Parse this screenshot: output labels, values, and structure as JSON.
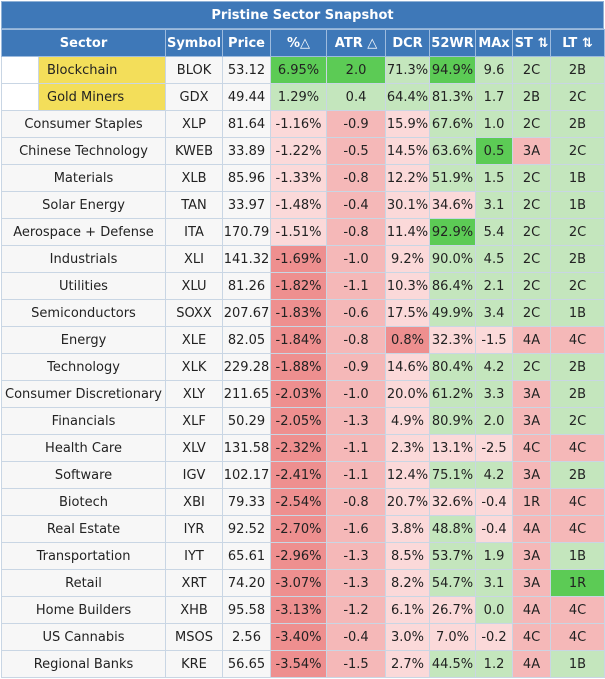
{
  "title": "Pristine Sector Snapshot",
  "headers": [
    "Sector",
    "Symbol",
    "Price",
    "%△",
    "ATR △",
    "DCR",
    "52WR",
    "MAx",
    "ST ⇅",
    "LT ⇅"
  ],
  "rows": [
    {
      "sector": "Blockchain",
      "symbol": "BLOK",
      "price": "53.12",
      "pct": "6.95%",
      "atr": "2.0",
      "dcr": "71.3%",
      "wr": "94.9%",
      "max": "9.6",
      "st": "2C",
      "lt": "2B",
      "hl": true
    },
    {
      "sector": "Gold Miners",
      "symbol": "GDX",
      "price": "49.44",
      "pct": "1.29%",
      "atr": "0.4",
      "dcr": "64.4%",
      "wr": "81.3%",
      "max": "1.7",
      "st": "2B",
      "lt": "2C",
      "hl": true
    },
    {
      "sector": "Consumer Staples",
      "symbol": "XLP",
      "price": "81.64",
      "pct": "-1.16%",
      "atr": "-0.9",
      "dcr": "15.9%",
      "wr": "67.6%",
      "max": "1.0",
      "st": "2C",
      "lt": "2B"
    },
    {
      "sector": "Chinese Technology",
      "symbol": "KWEB",
      "price": "33.89",
      "pct": "-1.22%",
      "atr": "-0.5",
      "dcr": "14.5%",
      "wr": "63.6%",
      "max": "0.5",
      "st": "3A",
      "lt": "2C"
    },
    {
      "sector": "Materials",
      "symbol": "XLB",
      "price": "85.96",
      "pct": "-1.33%",
      "atr": "-0.8",
      "dcr": "12.2%",
      "wr": "51.9%",
      "max": "1.5",
      "st": "2C",
      "lt": "1B"
    },
    {
      "sector": "Solar Energy",
      "symbol": "TAN",
      "price": "33.97",
      "pct": "-1.48%",
      "atr": "-0.4",
      "dcr": "30.1%",
      "wr": "34.6%",
      "max": "3.1",
      "st": "2C",
      "lt": "1B"
    },
    {
      "sector": "Aerospace + Defense",
      "symbol": "ITA",
      "price": "170.79",
      "pct": "-1.51%",
      "atr": "-0.8",
      "dcr": "11.4%",
      "wr": "92.9%",
      "max": "5.4",
      "st": "2C",
      "lt": "2C"
    },
    {
      "sector": "Industrials",
      "symbol": "XLI",
      "price": "141.32",
      "pct": "-1.69%",
      "atr": "-1.0",
      "dcr": "9.2%",
      "wr": "90.0%",
      "max": "4.5",
      "st": "2C",
      "lt": "2B"
    },
    {
      "sector": "Utilities",
      "symbol": "XLU",
      "price": "81.26",
      "pct": "-1.82%",
      "atr": "-1.1",
      "dcr": "10.3%",
      "wr": "86.4%",
      "max": "2.1",
      "st": "2C",
      "lt": "2C"
    },
    {
      "sector": "Semiconductors",
      "symbol": "SOXX",
      "price": "207.67",
      "pct": "-1.83%",
      "atr": "-0.6",
      "dcr": "17.5%",
      "wr": "49.9%",
      "max": "3.4",
      "st": "2C",
      "lt": "1B"
    },
    {
      "sector": "Energy",
      "symbol": "XLE",
      "price": "82.05",
      "pct": "-1.84%",
      "atr": "-0.8",
      "dcr": "0.8%",
      "wr": "32.3%",
      "max": "-1.5",
      "st": "4A",
      "lt": "4C"
    },
    {
      "sector": "Technology",
      "symbol": "XLK",
      "price": "229.28",
      "pct": "-1.88%",
      "atr": "-0.9",
      "dcr": "14.6%",
      "wr": "80.4%",
      "max": "4.2",
      "st": "2C",
      "lt": "2B"
    },
    {
      "sector": "Consumer Discretionary",
      "symbol": "XLY",
      "price": "211.65",
      "pct": "-2.03%",
      "atr": "-1.0",
      "dcr": "20.0%",
      "wr": "61.2%",
      "max": "3.3",
      "st": "3A",
      "lt": "2B"
    },
    {
      "sector": "Financials",
      "symbol": "XLF",
      "price": "50.29",
      "pct": "-2.05%",
      "atr": "-1.3",
      "dcr": "4.9%",
      "wr": "80.9%",
      "max": "2.0",
      "st": "3A",
      "lt": "2C"
    },
    {
      "sector": "Health Care",
      "symbol": "XLV",
      "price": "131.58",
      "pct": "-2.32%",
      "atr": "-1.1",
      "dcr": "2.3%",
      "wr": "13.1%",
      "max": "-2.5",
      "st": "4C",
      "lt": "4C"
    },
    {
      "sector": "Software",
      "symbol": "IGV",
      "price": "102.17",
      "pct": "-2.41%",
      "atr": "-1.1",
      "dcr": "12.4%",
      "wr": "75.1%",
      "max": "4.2",
      "st": "3A",
      "lt": "2B"
    },
    {
      "sector": "Biotech",
      "symbol": "XBI",
      "price": "79.33",
      "pct": "-2.54%",
      "atr": "-0.8",
      "dcr": "20.7%",
      "wr": "32.6%",
      "max": "-0.4",
      "st": "1R",
      "lt": "4C"
    },
    {
      "sector": "Real Estate",
      "symbol": "IYR",
      "price": "92.52",
      "pct": "-2.70%",
      "atr": "-1.6",
      "dcr": "3.8%",
      "wr": "48.8%",
      "max": "-0.4",
      "st": "4A",
      "lt": "4C"
    },
    {
      "sector": "Transportation",
      "symbol": "IYT",
      "price": "65.61",
      "pct": "-2.96%",
      "atr": "-1.3",
      "dcr": "8.5%",
      "wr": "53.7%",
      "max": "1.9",
      "st": "3A",
      "lt": "1B"
    },
    {
      "sector": "Retail",
      "symbol": "XRT",
      "price": "74.20",
      "pct": "-3.07%",
      "atr": "-1.3",
      "dcr": "8.2%",
      "wr": "54.7%",
      "max": "3.1",
      "st": "3A",
      "lt": "1R"
    },
    {
      "sector": "Home Builders",
      "symbol": "XHB",
      "price": "95.58",
      "pct": "-3.13%",
      "atr": "-1.2",
      "dcr": "6.1%",
      "wr": "26.7%",
      "max": "0.0",
      "st": "4A",
      "lt": "4C"
    },
    {
      "sector": "US Cannabis",
      "symbol": "MSOS",
      "price": "2.56",
      "pct": "-3.40%",
      "atr": "-0.4",
      "dcr": "3.0%",
      "wr": "7.0%",
      "max": "-0.2",
      "st": "4C",
      "lt": "4C"
    },
    {
      "sector": "Regional Banks",
      "symbol": "KRE",
      "price": "56.65",
      "pct": "-3.54%",
      "atr": "-1.5",
      "dcr": "2.7%",
      "wr": "44.5%",
      "max": "1.2",
      "st": "4A",
      "lt": "1B"
    }
  ],
  "colors": {
    "header_bg": "#3e78b8",
    "highlight_yellow": "#f3de5a",
    "green_strong": "#5ccb55",
    "green_light": "#c4e6bd",
    "red_light": "#f5b8b8",
    "red_strong": "#ee8f8f"
  }
}
